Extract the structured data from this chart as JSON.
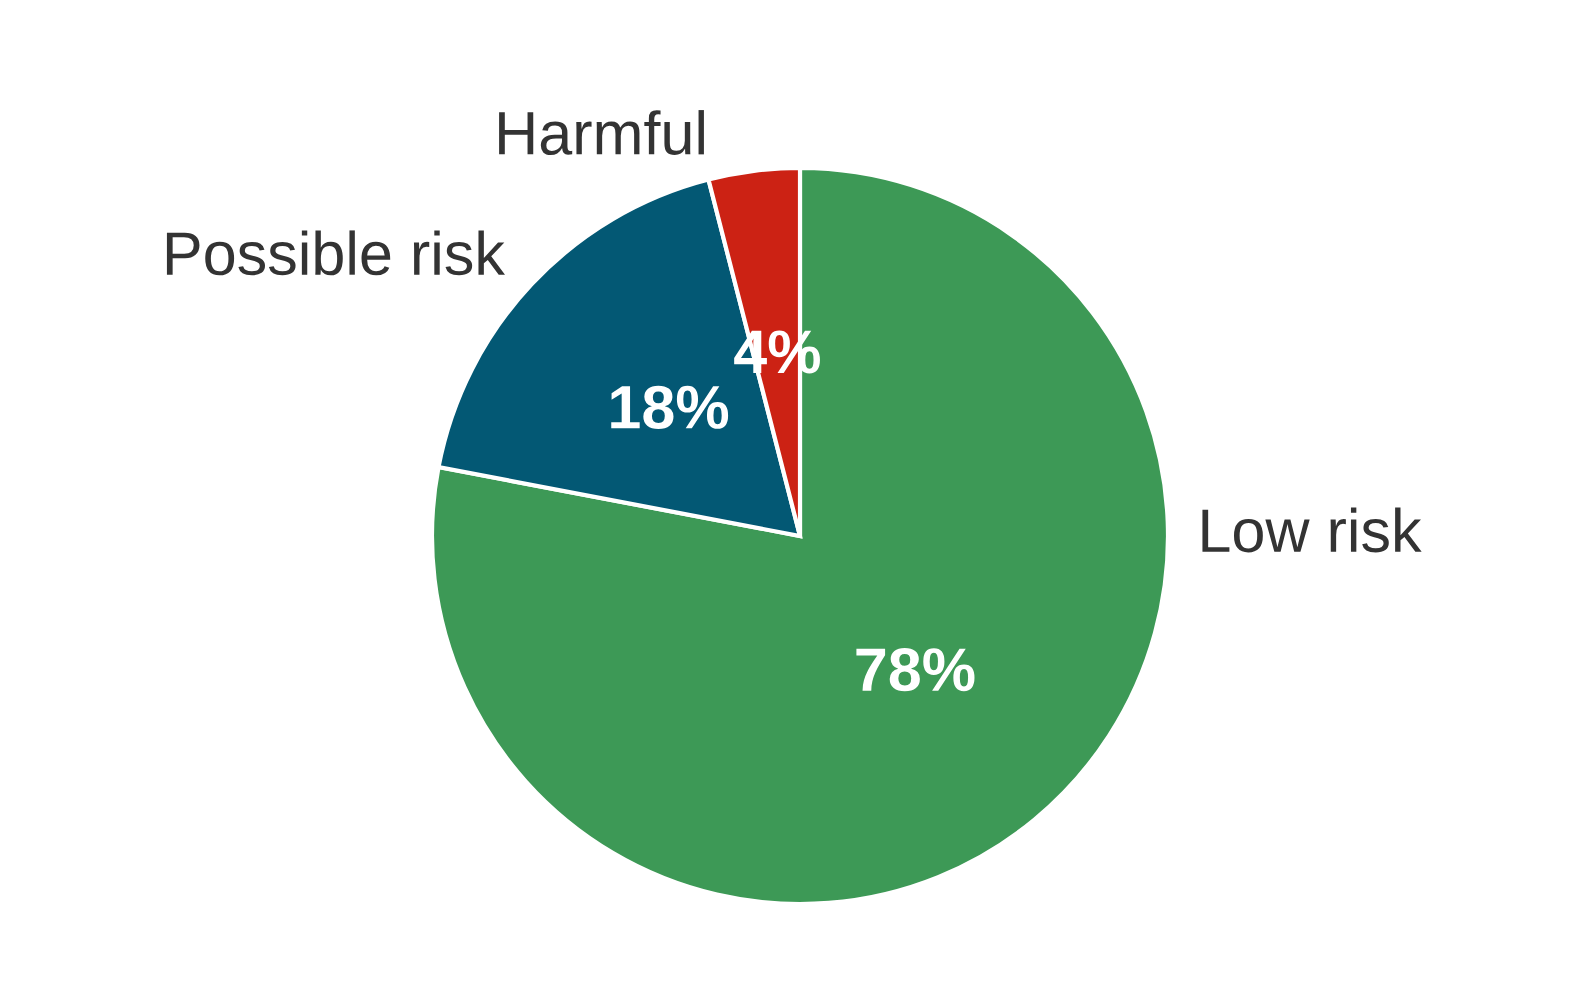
{
  "chart_data": {
    "type": "pie",
    "categories": [
      "Low risk",
      "Possible risk",
      "Harmful"
    ],
    "values": [
      78,
      18,
      4
    ],
    "colors": [
      "#3d9956",
      "#035874",
      "#cc2214"
    ],
    "value_labels": [
      "78%",
      "18%",
      "4%"
    ]
  }
}
